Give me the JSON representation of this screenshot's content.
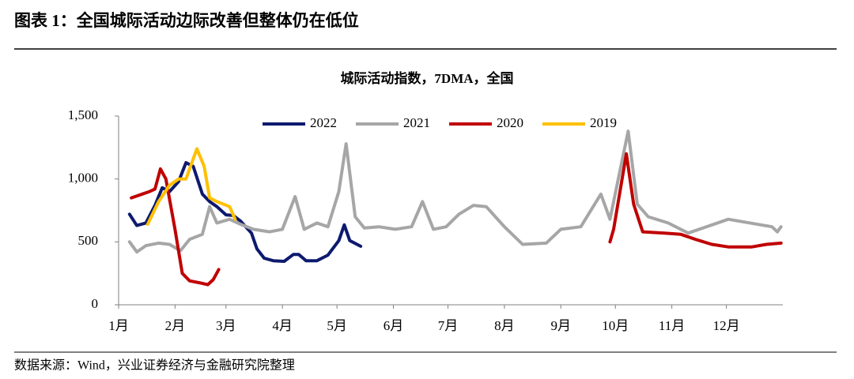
{
  "figure_title": "图表 1：全国城际活动边际改善但整体仍在低位",
  "source": "数据来源：Wind，兴业证券经济与金融研究院整理",
  "chart_data": {
    "type": "line",
    "title": "城际活动指数，7DMA，全国",
    "xlim": [
      1,
      366
    ],
    "xticks": [
      {
        "value": 1,
        "label": "1月"
      },
      {
        "value": 32,
        "label": "2月"
      },
      {
        "value": 60,
        "label": "3月"
      },
      {
        "value": 91,
        "label": "4月"
      },
      {
        "value": 121,
        "label": "5月"
      },
      {
        "value": 152,
        "label": "6月"
      },
      {
        "value": 182,
        "label": "7月"
      },
      {
        "value": 213,
        "label": "8月"
      },
      {
        "value": 244,
        "label": "9月"
      },
      {
        "value": 274,
        "label": "10月"
      },
      {
        "value": 305,
        "label": "11月"
      },
      {
        "value": 335,
        "label": "12月"
      }
    ],
    "ylim": [
      0,
      1500
    ],
    "yticks": [
      0,
      500,
      {
        "value": 1000,
        "label": "1,000"
      },
      {
        "value": 1500,
        "label": "1,500"
      }
    ],
    "series": [
      {
        "name": "2022",
        "color": "#0d1a6e",
        "x": [
          7,
          11,
          16,
          21,
          25,
          29,
          34,
          38,
          42,
          47,
          51,
          55,
          60,
          64,
          68,
          74,
          77,
          81,
          86,
          92,
          97,
          100,
          104,
          110,
          116,
          122,
          125,
          128,
          134
        ],
        "values": [
          720,
          630,
          650,
          790,
          930,
          900,
          980,
          1130,
          1100,
          880,
          820,
          780,
          715,
          710,
          665,
          570,
          445,
          370,
          350,
          345,
          400,
          400,
          350,
          350,
          395,
          510,
          635,
          510,
          465
        ]
      },
      {
        "name": "2021",
        "color": "#a6a6a6",
        "x": [
          7,
          11,
          16,
          23,
          29,
          35,
          40,
          47,
          51,
          55,
          62,
          68,
          75,
          84,
          91,
          98,
          103,
          110,
          116,
          122,
          126,
          131,
          136,
          144,
          153,
          162,
          168,
          174,
          181,
          188,
          196,
          203,
          213,
          223,
          236,
          244,
          255,
          266,
          271,
          281,
          286,
          292,
          303,
          314,
          336,
          360,
          363,
          365
        ],
        "values": [
          500,
          420,
          470,
          490,
          480,
          430,
          520,
          560,
          780,
          650,
          680,
          640,
          600,
          580,
          600,
          860,
          600,
          650,
          620,
          900,
          1280,
          700,
          610,
          620,
          600,
          620,
          820,
          600,
          620,
          720,
          790,
          780,
          620,
          480,
          490,
          600,
          620,
          880,
          680,
          1380,
          800,
          700,
          650,
          570,
          680,
          620,
          580,
          620
        ]
      },
      {
        "name": "2020",
        "color": "#c00000",
        "x": [
          8,
          14,
          18,
          21,
          24,
          27,
          32,
          36,
          40,
          47,
          50,
          53,
          56,
          150,
          271,
          273,
          280,
          284,
          289,
          301,
          310,
          318,
          327,
          336,
          349,
          357,
          365
        ],
        "values": [
          850,
          880,
          900,
          920,
          1080,
          1000,
          600,
          250,
          190,
          170,
          160,
          200,
          280,
          null,
          500,
          600,
          1200,
          800,
          580,
          570,
          560,
          520,
          480,
          460,
          460,
          480,
          490
        ]
      },
      {
        "name": "2019",
        "color": "#ffc000",
        "x": [
          17,
          23,
          29,
          34,
          38,
          44,
          48,
          51,
          55,
          62,
          65
        ],
        "values": [
          640,
          820,
          950,
          1000,
          1000,
          1240,
          1100,
          850,
          820,
          780,
          680
        ]
      }
    ]
  }
}
